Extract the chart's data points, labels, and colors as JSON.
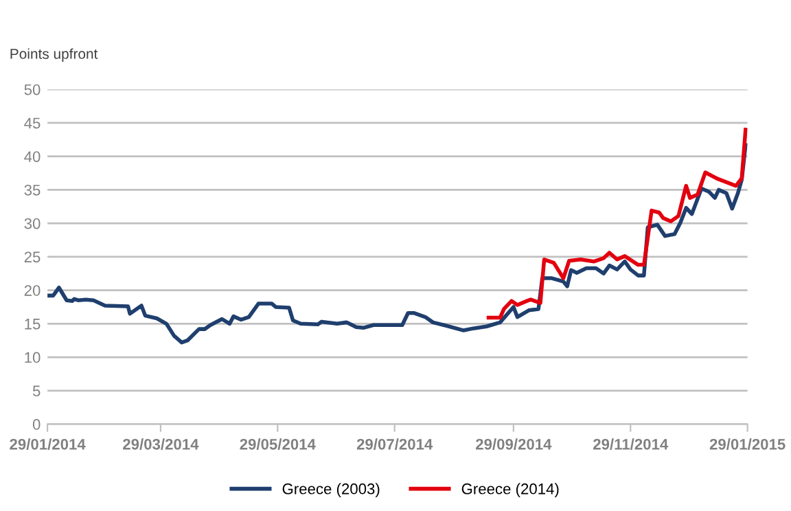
{
  "chart_data": {
    "type": "line",
    "ylabel": "Points upfront",
    "xlim": [
      "2014-01-29",
      "2015-01-29"
    ],
    "xticks": [
      {
        "value": "2014-01-29",
        "label": "29/01/2014"
      },
      {
        "value": "2014-03-29",
        "label": "29/03/2014"
      },
      {
        "value": "2014-05-29",
        "label": "29/05/2014"
      },
      {
        "value": "2014-07-29",
        "label": "29/07/2014"
      },
      {
        "value": "2014-09-29",
        "label": "29/09/2014"
      },
      {
        "value": "2014-11-29",
        "label": "29/11/2014"
      },
      {
        "value": "2015-01-29",
        "label": "29/01/2015"
      }
    ],
    "ylim": [
      0,
      50
    ],
    "yticks": [
      0,
      5,
      10,
      15,
      20,
      25,
      30,
      35,
      40,
      45,
      50
    ],
    "grid": "y",
    "legend": "bottom",
    "marker": "none",
    "line_style": "solid",
    "series": [
      {
        "name": "Greece (2003)",
        "color": "#1f3f6e",
        "x": [
          "2014-01-29",
          "2014-02-01",
          "2014-02-04",
          "2014-02-08",
          "2014-02-11",
          "2014-02-12",
          "2014-02-14",
          "2014-02-18",
          "2014-02-22",
          "2014-02-28",
          "2014-03-12",
          "2014-03-13",
          "2014-03-19",
          "2014-03-21",
          "2014-03-27",
          "2014-04-01",
          "2014-04-05",
          "2014-04-09",
          "2014-04-12",
          "2014-04-18",
          "2014-04-21",
          "2014-04-24",
          "2014-04-30",
          "2014-05-04",
          "2014-05-06",
          "2014-05-10",
          "2014-05-14",
          "2014-05-19",
          "2014-05-26",
          "2014-05-28",
          "2014-06-04",
          "2014-06-06",
          "2014-06-10",
          "2014-06-19",
          "2014-06-21",
          "2014-06-29",
          "2014-07-04",
          "2014-07-09",
          "2014-07-13",
          "2014-07-18",
          "2014-07-28",
          "2014-08-02",
          "2014-08-05",
          "2014-08-08",
          "2014-08-14",
          "2014-08-18",
          "2014-08-25",
          "2014-09-03",
          "2014-09-08",
          "2014-09-15",
          "2014-09-22",
          "2014-09-29",
          "2014-10-01",
          "2014-10-07",
          "2014-10-12",
          "2014-10-14",
          "2014-10-19",
          "2014-10-25",
          "2014-10-27",
          "2014-10-29",
          "2014-11-01",
          "2014-11-06",
          "2014-11-11",
          "2014-11-15",
          "2014-11-18",
          "2014-11-22",
          "2014-11-26",
          "2014-11-29",
          "2014-12-03",
          "2014-12-06",
          "2014-12-08",
          "2014-12-13",
          "2014-12-17",
          "2014-12-22",
          "2014-12-25",
          "2014-12-28",
          "2014-12-31",
          "2015-01-05",
          "2015-01-09",
          "2015-01-12",
          "2015-01-14",
          "2015-01-18",
          "2015-01-21",
          "2015-01-24",
          "2015-01-26",
          "2015-01-28"
        ],
        "values": [
          19.2,
          19.2,
          20.4,
          18.5,
          18.4,
          18.7,
          18.5,
          18.6,
          18.5,
          17.7,
          17.6,
          16.5,
          17.7,
          16.2,
          15.8,
          15.0,
          13.2,
          12.2,
          12.5,
          14.2,
          14.2,
          14.8,
          15.7,
          15.0,
          16.1,
          15.6,
          16.0,
          18.0,
          18.0,
          17.5,
          17.4,
          15.5,
          15.0,
          14.9,
          15.3,
          15.0,
          15.2,
          14.5,
          14.4,
          14.8,
          14.8,
          14.8,
          16.6,
          16.6,
          16.0,
          15.2,
          14.7,
          14.0,
          14.3,
          14.6,
          15.2,
          17.5,
          16.0,
          17.0,
          17.2,
          21.8,
          21.8,
          21.3,
          20.6,
          23.0,
          22.6,
          23.3,
          23.3,
          22.5,
          23.7,
          23.1,
          24.3,
          23.1,
          22.2,
          22.2,
          29.4,
          29.8,
          28.1,
          28.4,
          30.1,
          32.3,
          31.4,
          35.2,
          34.7,
          33.8,
          35.0,
          34.5,
          32.2,
          34.5,
          36.5,
          41.7
        ]
      },
      {
        "name": "Greece (2014)",
        "color": "#e3000f",
        "x": [
          "2014-09-16",
          "2014-09-22",
          "2014-09-24",
          "2014-09-28",
          "2014-10-01",
          "2014-10-06",
          "2014-10-08",
          "2014-10-13",
          "2014-10-15",
          "2014-10-20",
          "2014-10-25",
          "2014-10-28",
          "2014-11-03",
          "2014-11-10",
          "2014-11-15",
          "2014-11-18",
          "2014-11-22",
          "2014-11-26",
          "2014-12-03",
          "2014-12-06",
          "2014-12-10",
          "2014-12-14",
          "2014-12-16",
          "2014-12-20",
          "2014-12-24",
          "2014-12-28",
          "2014-12-30",
          "2015-01-03",
          "2015-01-07",
          "2015-01-13",
          "2015-01-23",
          "2015-01-26",
          "2015-01-28"
        ],
        "values": [
          15.9,
          15.9,
          17.2,
          18.4,
          17.8,
          18.4,
          18.6,
          18.1,
          24.6,
          24.1,
          21.8,
          24.4,
          24.6,
          24.3,
          24.8,
          25.6,
          24.6,
          25.1,
          23.8,
          23.8,
          31.9,
          31.6,
          30.8,
          30.3,
          31.1,
          35.6,
          33.8,
          34.3,
          37.6,
          36.7,
          35.6,
          36.7,
          44.0
        ]
      }
    ]
  }
}
